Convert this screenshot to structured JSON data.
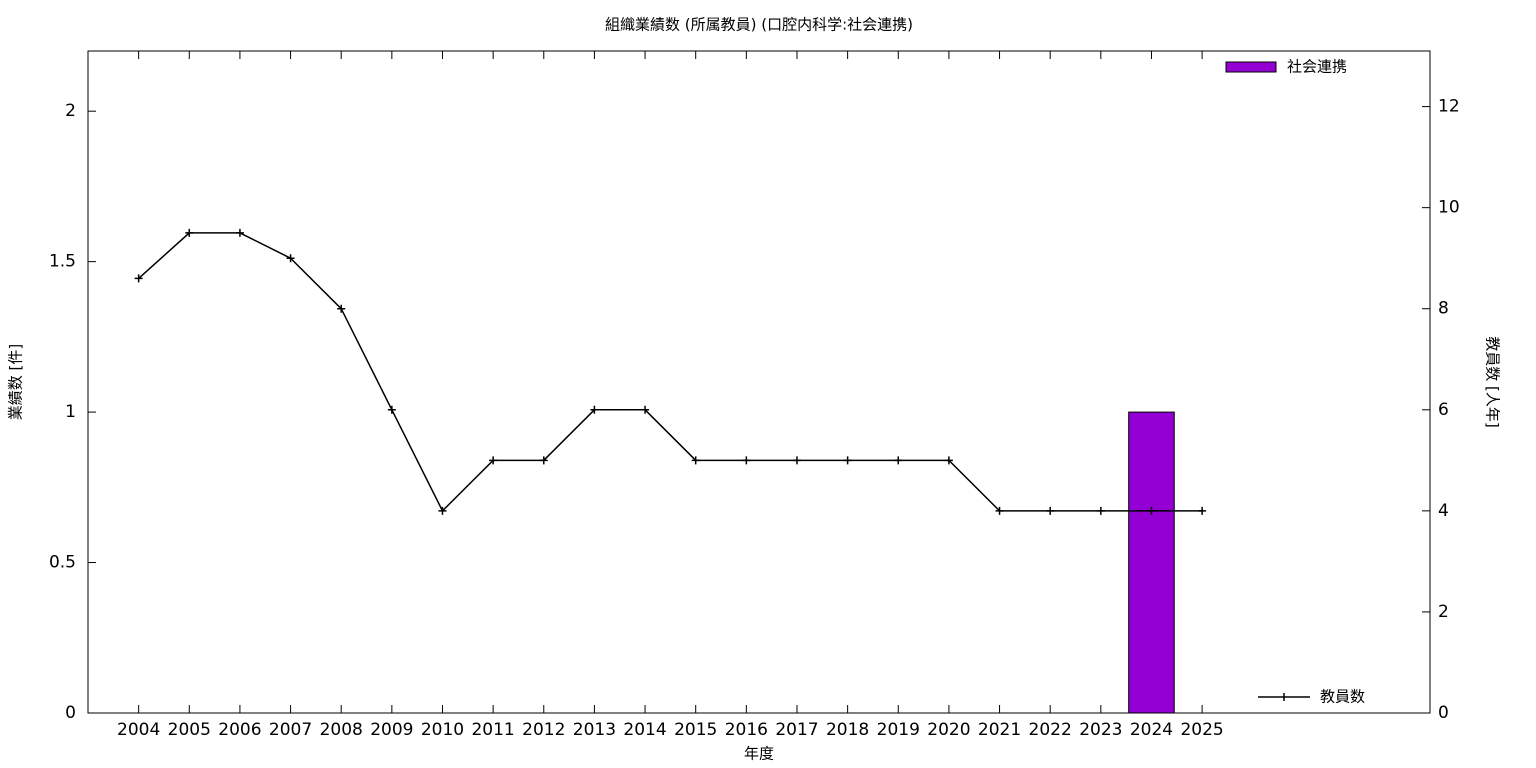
{
  "chart_data": {
    "type": "bar",
    "title": "組織業績数 (所属教員) (口腔内科学:社会連携)",
    "xlabel": "年度",
    "ylabel": "業績数 [件]",
    "y2label": "教員数 [人年]",
    "x": [
      2004,
      2005,
      2006,
      2007,
      2008,
      2009,
      2010,
      2011,
      2012,
      2013,
      2014,
      2015,
      2016,
      2017,
      2018,
      2019,
      2020,
      2021,
      2022,
      2023,
      2024,
      2025
    ],
    "xlim": [
      2003,
      2029.5
    ],
    "xticks": [
      2004,
      2005,
      2006,
      2007,
      2008,
      2009,
      2010,
      2011,
      2012,
      2013,
      2014,
      2015,
      2016,
      2017,
      2018,
      2019,
      2020,
      2021,
      2022,
      2023,
      2024,
      2025
    ],
    "ylim": [
      0,
      2.2
    ],
    "yticks": [
      0,
      0.5,
      1,
      1.5,
      2
    ],
    "y2lim": [
      0,
      13.1
    ],
    "y2ticks": [
      0,
      2,
      4,
      6,
      8,
      10,
      12
    ],
    "series": [
      {
        "name": "社会連携",
        "type": "bar",
        "color": "#9400d3",
        "legend": "top-right",
        "values": [
          0,
          0,
          0,
          0,
          0,
          0,
          0,
          0,
          0,
          0,
          0,
          0,
          0,
          0,
          0,
          0,
          0,
          0,
          0,
          0,
          1,
          0
        ]
      },
      {
        "name": "教員数",
        "type": "line",
        "axis": "y2",
        "color": "#000000",
        "legend": "bottom-right",
        "values": [
          8.6,
          9.5,
          9.5,
          9,
          8,
          6,
          4,
          5,
          5,
          6,
          6,
          5,
          5,
          5,
          5,
          5,
          5,
          4,
          4,
          4,
          4,
          4
        ]
      }
    ]
  }
}
